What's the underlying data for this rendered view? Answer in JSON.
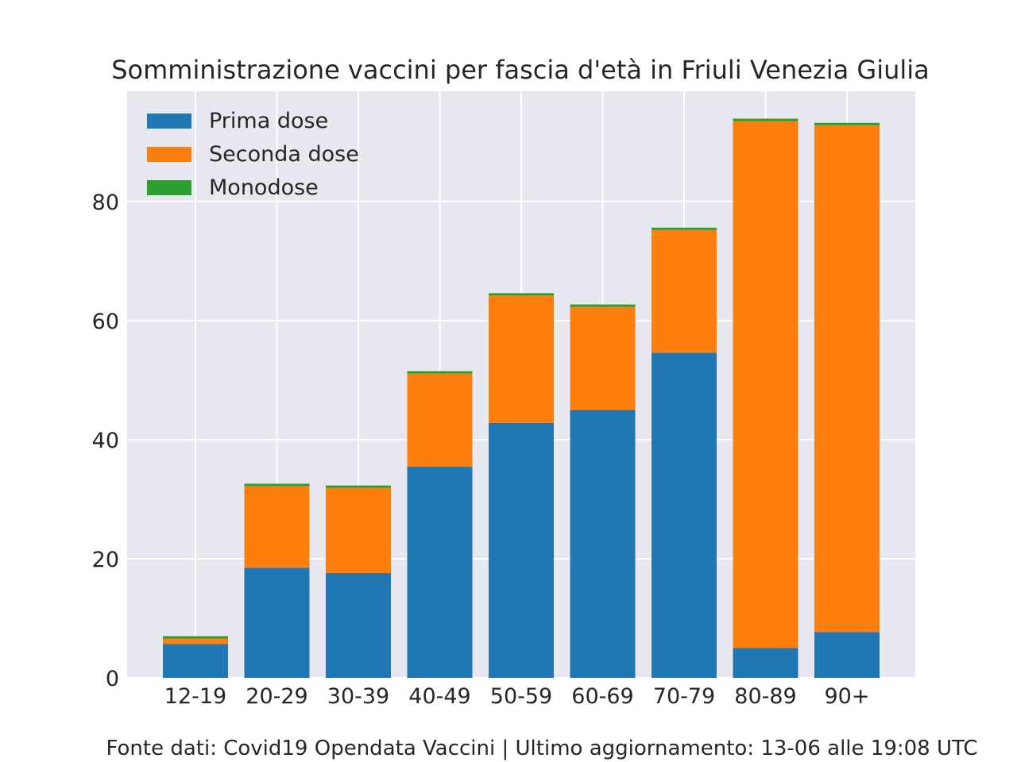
{
  "chart_data": {
    "type": "bar",
    "stacked": true,
    "title": "Somministrazione vaccini per fascia d'età in Friuli Venezia Giulia",
    "xlabel": "",
    "ylabel": "",
    "categories": [
      "12-19",
      "20-29",
      "30-39",
      "40-49",
      "50-59",
      "60-69",
      "70-79",
      "80-89",
      "90+"
    ],
    "series": [
      {
        "name": "Prima dose",
        "color": "#1f77b4",
        "values": [
          5.7,
          18.5,
          17.6,
          35.5,
          42.8,
          45.0,
          54.6,
          5.0,
          7.7
        ]
      },
      {
        "name": "Seconda dose",
        "color": "#ff7f0e",
        "values": [
          0.9,
          13.7,
          14.3,
          15.6,
          21.4,
          17.3,
          20.6,
          88.5,
          85.1
        ]
      },
      {
        "name": "Monodose",
        "color": "#2ca02c",
        "values": [
          0.4,
          0.4,
          0.4,
          0.4,
          0.4,
          0.4,
          0.4,
          0.4,
          0.4
        ]
      }
    ],
    "ylim": [
      0,
      98.5
    ],
    "yticks": [
      0,
      20,
      40,
      60,
      80
    ],
    "grid": true,
    "legend_position": "top-left",
    "background": "#e8e8f0"
  },
  "footer": "Fonte dati: Covid19 Opendata Vaccini | Ultimo aggiornamento: 13-06 alle 19:08 UTC"
}
